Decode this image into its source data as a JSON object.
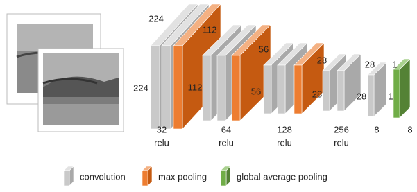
{
  "dimensions": [
    "224",
    "224",
    "112",
    "112",
    "56",
    "56",
    "28",
    "28",
    "28",
    "28",
    "1",
    "1"
  ],
  "layers": [
    {
      "channels": "32",
      "activation": "relu"
    },
    {
      "channels": "64",
      "activation": "relu"
    },
    {
      "channels": "128",
      "activation": "relu"
    },
    {
      "channels": "256",
      "activation": "relu"
    },
    {
      "channels": "8"
    },
    {
      "channels": "8"
    }
  ],
  "legend": [
    "convolution",
    "max pooling",
    "global average pooling"
  ]
}
